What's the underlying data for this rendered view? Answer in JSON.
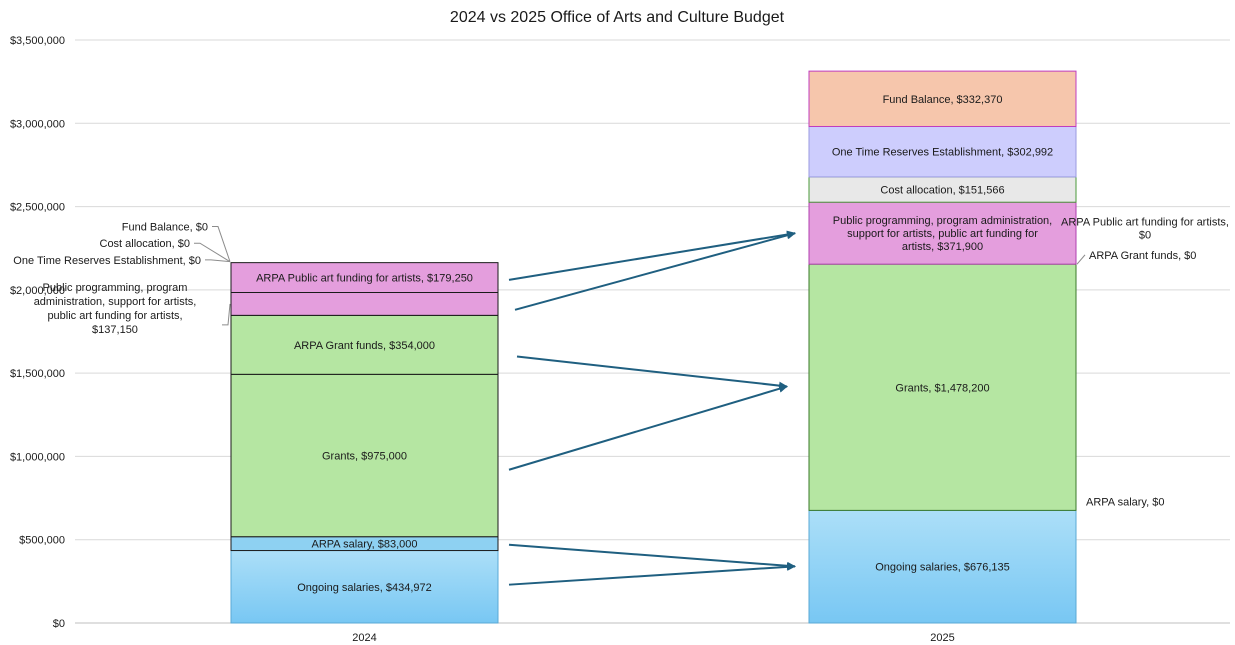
{
  "chart_data": {
    "type": "bar",
    "stacked": true,
    "title": "2024 vs 2025 Office of Arts and Culture Budget",
    "categories": [
      "2024",
      "2025"
    ],
    "ylim": [
      0,
      3500000
    ],
    "y_ticks": [
      {
        "value": 0,
        "label": "$0"
      },
      {
        "value": 500000,
        "label": "$500,000"
      },
      {
        "value": 1000000,
        "label": "$1,000,000"
      },
      {
        "value": 1500000,
        "label": "$1,500,000"
      },
      {
        "value": 2000000,
        "label": "$2,000,000"
      },
      {
        "value": 2500000,
        "label": "$2,500,000"
      },
      {
        "value": 3000000,
        "label": "$3,000,000"
      },
      {
        "value": 3500000,
        "label": "$3,500,000"
      }
    ],
    "grid": true,
    "bars": [
      {
        "category": "2024",
        "segments": [
          {
            "key": "ongoing",
            "value": 434972,
            "label": "Ongoing salaries, $434,972",
            "color": "#85cdf5"
          },
          {
            "key": "arpa_salary",
            "value": 83000,
            "label": "ARPA salary, $83,000",
            "color": "#8ed1f2"
          },
          {
            "key": "grants",
            "value": 975000,
            "label": "Grants, $975,000",
            "color": "#b5e6a2"
          },
          {
            "key": "arpa_grants",
            "value": 354000,
            "label": "ARPA Grant funds, $354,000",
            "color": "#b5e6a2"
          },
          {
            "key": "public_prog",
            "value": 137150,
            "label": "",
            "color": "#e49edd"
          },
          {
            "key": "arpa_public_art",
            "value": 179250,
            "label": "ARPA Public art funding for artists, $179,250",
            "color": "#e49edd"
          },
          {
            "key": "one_time",
            "value": 0,
            "label": "",
            "color": "#cdcdfd"
          },
          {
            "key": "cost_alloc",
            "value": 0,
            "label": "",
            "color": "#e8e8e8"
          },
          {
            "key": "fund_balance",
            "value": 0,
            "label": "",
            "color": "#f6c6ac"
          }
        ]
      },
      {
        "category": "2025",
        "segments": [
          {
            "key": "ongoing",
            "value": 676135,
            "label": "Ongoing salaries, $676,135",
            "color": "#85cdf5"
          },
          {
            "key": "arpa_salary",
            "value": 0,
            "label": "",
            "color": "#8ed1f2"
          },
          {
            "key": "grants",
            "value": 1478200,
            "label": "Grants, $1,478,200",
            "color": "#b5e6a2"
          },
          {
            "key": "arpa_grants",
            "value": 0,
            "label": "",
            "color": "#b5e6a2"
          },
          {
            "key": "public_prog",
            "value": 371900,
            "label": "Public programming, program administration, support for artists, public art funding for artists, $371,900",
            "color": "#e49edd"
          },
          {
            "key": "arpa_public_art",
            "value": 0,
            "label": "",
            "color": "#e49edd"
          },
          {
            "key": "cost_alloc",
            "value": 151566,
            "label": "Cost allocation, $151,566",
            "color": "#e8e8e8"
          },
          {
            "key": "one_time",
            "value": 302992,
            "label": "One Time Reserves Establishment, $302,992",
            "color": "#cdcdfd"
          },
          {
            "key": "fund_balance",
            "value": 332370,
            "label": "Fund Balance, $332,370",
            "color": "#f6c6ac"
          }
        ]
      }
    ],
    "callouts_2024": {
      "fund_balance": "Fund Balance, $0",
      "cost_alloc": "Cost allocation, $0",
      "one_time": "One Time Reserves Establishment, $0",
      "public_prog": "Public programming, program administration, support for artists, public art funding for artists, $137,150"
    },
    "callouts_2025": {
      "arpa_public_art": "ARPA Public art funding for artists, $0",
      "arpa_grants": "ARPA Grant funds, $0",
      "arpa_salary": "ARPA salary, $0"
    },
    "arrow_color": "#1f5f80",
    "arrows": [
      {
        "from": [
          "2024",
          2060000
        ],
        "to": [
          "2025",
          2340000
        ]
      },
      {
        "from": [
          "2024",
          1880000
        ],
        "to": [
          "2025",
          2340000
        ]
      },
      {
        "from": [
          "2024",
          1600000
        ],
        "to": [
          "2025",
          1420000
        ]
      },
      {
        "from": [
          "2024",
          920000
        ],
        "to": [
          "2025",
          1420000
        ]
      },
      {
        "from": [
          "2024",
          470000
        ],
        "to": [
          "2025",
          340000
        ]
      },
      {
        "from": [
          "2024",
          230000
        ],
        "to": [
          "2025",
          340000
        ]
      }
    ]
  }
}
